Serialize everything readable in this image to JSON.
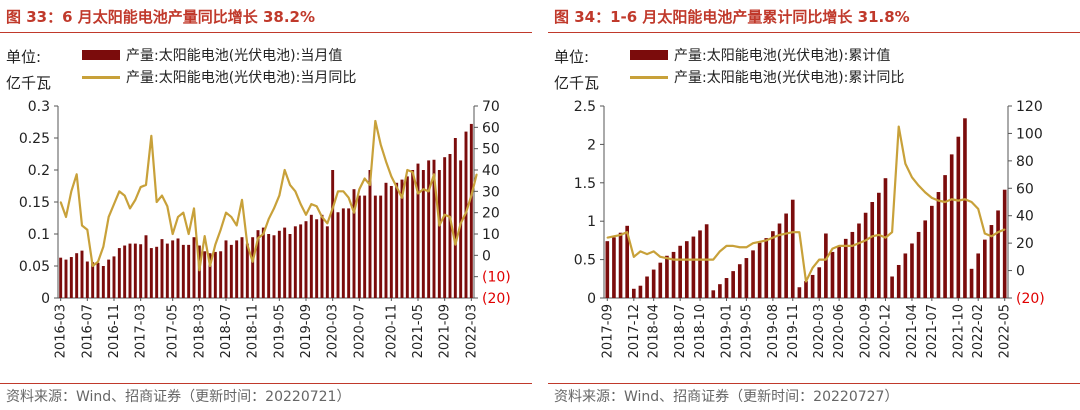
{
  "charts": [
    {
      "title": "图 33：6 月太阳能电池产量同比增长 38.2%",
      "unit_line1": "单位:",
      "unit_line2": "亿千瓦",
      "source": "资料来源：Wind、招商证券（更新时间：20220721）",
      "legend_bar": "产量:太阳能电池(光伏电池):当月值",
      "legend_line": "产量:太阳能电池(光伏电池):当月同比"
    },
    {
      "title": "图 34：1-6 月太阳能电池产量累计同比增长 31.8%",
      "unit_line1": "单位:",
      "unit_line2": "亿千瓦",
      "source": "资料来源：Wind、招商证券（更新时间：20220727）",
      "legend_bar": "产量:太阳能电池(光伏电池):累计值",
      "legend_line": "产量:太阳能电池(光伏电池):累计同比"
    }
  ],
  "colors": {
    "bar": "#7b0c0c",
    "line": "#c8a13a",
    "title": "#c0392b",
    "negative": "#e00000"
  },
  "chart_data": [
    {
      "type": "bar",
      "title": "6 月太阳能电池产量同比增长 38.2%",
      "ylabel": "亿千瓦",
      "ylim": [
        0,
        0.3
      ],
      "y_ticks": [
        "0",
        "0.05",
        "0.1",
        "0.15",
        "0.2",
        "0.25",
        "0.3"
      ],
      "y2lim": [
        -20,
        70
      ],
      "y2_ticks": [
        "(20)",
        "(10)",
        "0",
        "10",
        "20",
        "30",
        "40",
        "50",
        "60",
        "70"
      ],
      "x_tick_labels": [
        "2016-03",
        "2016-07",
        "2016-11",
        "2017-03",
        "2017-05",
        "2018-03",
        "2018-07",
        "2018-11",
        "2019-05",
        "2019-09",
        "2020-03",
        "2020-07",
        "2020-11",
        "2021-05",
        "2021-09",
        "2022-03"
      ],
      "series": [
        {
          "name": "产量:太阳能电池(光伏电池):当月值",
          "type": "bar",
          "axis": "left",
          "values": [
            0.063,
            0.06,
            0.064,
            0.07,
            0.074,
            0.057,
            0.056,
            0.055,
            0.05,
            0.06,
            0.065,
            0.078,
            0.082,
            0.085,
            0.085,
            0.084,
            0.098,
            0.078,
            0.08,
            0.092,
            0.085,
            0.09,
            0.093,
            0.083,
            0.083,
            0.095,
            0.082,
            0.073,
            0.07,
            0.072,
            0.073,
            0.09,
            0.083,
            0.09,
            0.095,
            0.085,
            0.095,
            0.106,
            0.11,
            0.1,
            0.098,
            0.105,
            0.11,
            0.1,
            0.112,
            0.115,
            0.12,
            0.13,
            0.123,
            0.13,
            0.112,
            0.2,
            0.134,
            0.14,
            0.14,
            0.17,
            0.16,
            0.16,
            0.2,
            0.16,
            0.16,
            0.18,
            0.175,
            0.18,
            0.185,
            0.19,
            0.2,
            0.21,
            0.2,
            0.215,
            0.216,
            0.2,
            0.22,
            0.225,
            0.25,
            0.215,
            0.26,
            0.272
          ]
        },
        {
          "name": "产量:太阳能电池(光伏电池):当月同比",
          "type": "line",
          "axis": "right",
          "values": [
            25,
            18,
            30,
            38,
            14,
            12,
            -5,
            -3,
            4,
            18,
            24,
            30,
            28,
            22,
            26,
            32,
            33,
            56,
            25,
            28,
            23,
            10,
            18,
            20,
            10,
            22,
            -7,
            9,
            -5,
            5,
            12,
            20,
            18,
            14,
            26,
            5,
            -3,
            8,
            10,
            17,
            22,
            28,
            40,
            33,
            30,
            24,
            19,
            24,
            23,
            18,
            15,
            22,
            30,
            30,
            27,
            20,
            31,
            36,
            33,
            63,
            52,
            44,
            37,
            32,
            27,
            40,
            39,
            29,
            31,
            30,
            38,
            14,
            19,
            18,
            5,
            15,
            20,
            28,
            38
          ]
        }
      ]
    },
    {
      "type": "bar",
      "title": "1-6 月太阳能电池产量累计同比增长 31.8%",
      "ylabel": "亿千瓦",
      "ylim": [
        0,
        2.5
      ],
      "y_ticks": [
        "0",
        "0.5",
        "1",
        "1.5",
        "2",
        "2.5"
      ],
      "y2lim": [
        -20,
        120
      ],
      "y2_ticks": [
        "(20)",
        "0",
        "20",
        "40",
        "60",
        "80",
        "100",
        "120"
      ],
      "x_tick_labels": [
        "2017-09",
        "2017-12",
        "2018-04",
        "2018-07",
        "2018-10",
        "2019-01",
        "2019-05",
        "2019-08",
        "2019-11",
        "2020-03",
        "2020-06",
        "2020-09",
        "2020-12",
        "2021-04",
        "2021-07",
        "2021-10",
        "2022-02",
        "2022-05"
      ],
      "series": [
        {
          "name": "产量:太阳能电池(光伏电池):累计值",
          "type": "bar",
          "axis": "left",
          "values": [
            0.74,
            0.79,
            0.85,
            0.94,
            0.12,
            0.16,
            0.28,
            0.37,
            0.46,
            0.55,
            0.6,
            0.68,
            0.74,
            0.8,
            0.88,
            0.96,
            0.1,
            0.18,
            0.26,
            0.35,
            0.44,
            0.52,
            0.62,
            0.72,
            0.78,
            0.87,
            0.97,
            1.1,
            1.28,
            0.14,
            0.22,
            0.3,
            0.4,
            0.84,
            0.6,
            0.68,
            0.77,
            0.86,
            0.97,
            1.11,
            1.25,
            1.37,
            1.56,
            0.28,
            0.43,
            0.58,
            0.71,
            0.86,
            1.01,
            1.2,
            1.38,
            1.6,
            1.87,
            2.1,
            2.34,
            0.38,
            0.58,
            0.76,
            0.95,
            1.14,
            1.41
          ]
        },
        {
          "name": "产量:太阳能电池(光伏电池):累计同比",
          "type": "line",
          "axis": "right",
          "values": [
            24,
            25,
            26,
            28,
            10,
            14,
            12,
            14,
            10,
            9,
            8,
            8,
            8,
            8,
            8,
            8,
            8,
            14,
            18,
            18,
            17,
            17,
            20,
            21,
            22,
            24,
            26,
            27,
            28,
            28,
            -8,
            2,
            8,
            8,
            16,
            18,
            18,
            18,
            20,
            22,
            25,
            26,
            24,
            28,
            105,
            78,
            68,
            62,
            57,
            53,
            51,
            50,
            52,
            51,
            52,
            50,
            45,
            27,
            25,
            28,
            30
          ]
        }
      ]
    }
  ]
}
